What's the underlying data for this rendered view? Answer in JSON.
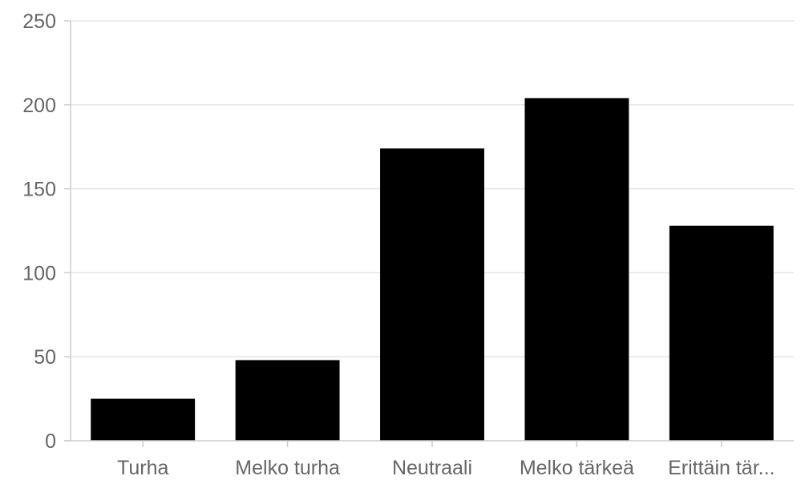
{
  "chart_data": {
    "type": "bar",
    "categories": [
      "Turha",
      "Melko turha",
      "Neutraali",
      "Melko tärkeä",
      "Erittäin tär..."
    ],
    "values": [
      25,
      48,
      174,
      204,
      128
    ],
    "yticks": [
      0,
      50,
      100,
      150,
      200,
      250
    ],
    "ylim": [
      0,
      250
    ],
    "title": "",
    "xlabel": "",
    "ylabel": "",
    "grid": true,
    "bar_color": "#000000"
  }
}
